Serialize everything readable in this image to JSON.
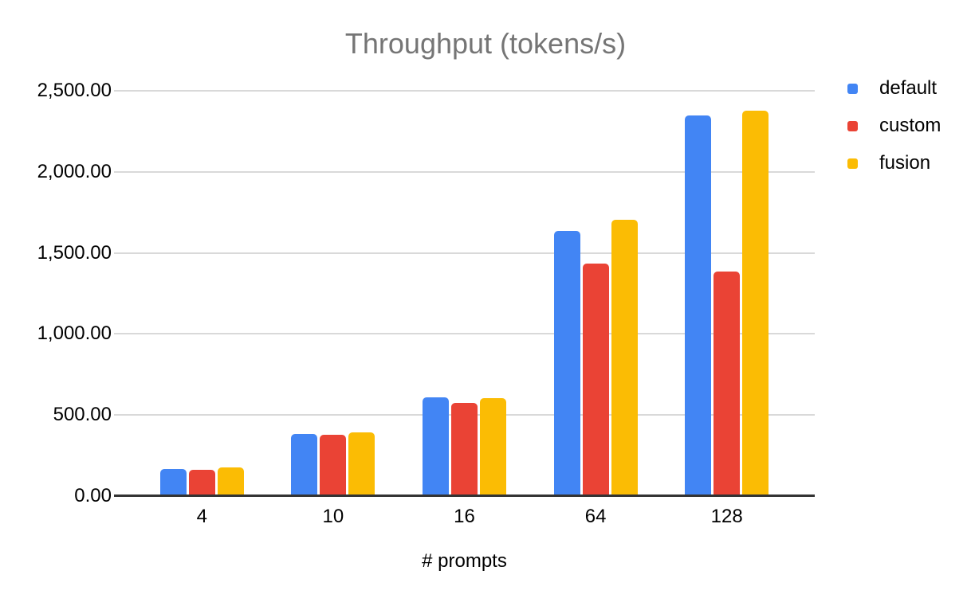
{
  "chart": {
    "background": "#ffffff",
    "title_color": "#757575",
    "label_color": "#000000",
    "gridline_color": "#d9d9d9",
    "axis_color": "#333333"
  },
  "chart_data": {
    "type": "bar",
    "title": "Throughput (tokens/s)",
    "xlabel": "# prompts",
    "ylabel": "",
    "categories": [
      "4",
      "10",
      "16",
      "64",
      "128"
    ],
    "series": [
      {
        "name": "default",
        "color": "#4285F4",
        "values": [
          162,
          376,
          605,
          1632,
          2344
        ]
      },
      {
        "name": "custom",
        "color": "#EA4335",
        "values": [
          157,
          375,
          568,
          1428,
          1380
        ]
      },
      {
        "name": "fusion",
        "color": "#FBBC04",
        "values": [
          172,
          386,
          597,
          1700,
          2372
        ]
      }
    ],
    "ylim": [
      0,
      2500
    ],
    "y_ticks": [
      0,
      500,
      1000,
      1500,
      2000,
      2500
    ],
    "y_tick_labels": [
      "0.00",
      "500.00",
      "1,000.00",
      "1,500.00",
      "2,000.00",
      "2,500.00"
    ],
    "grid": true,
    "legend_position": "right"
  }
}
